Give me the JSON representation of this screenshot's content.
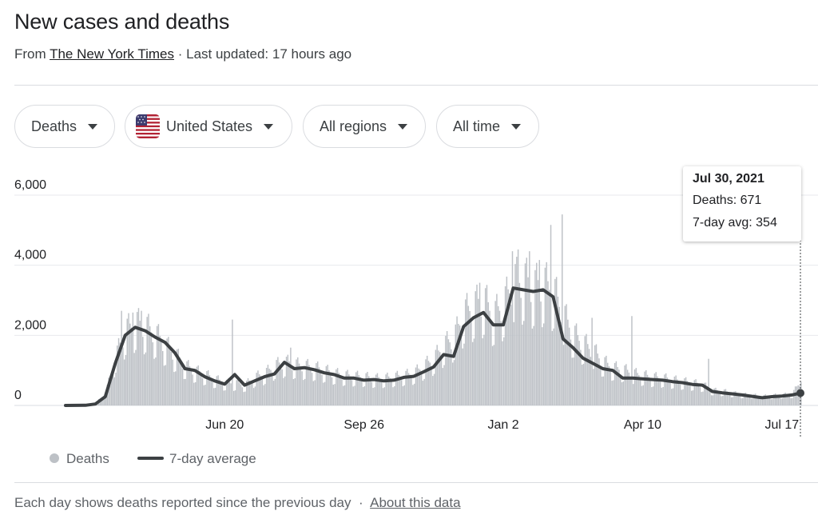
{
  "header": {
    "title": "New cases and deaths",
    "source_prefix": "From",
    "source_name": "The New York Times",
    "updated": "· Last updated: 17 hours ago"
  },
  "filters": {
    "metric": "Deaths",
    "country": "United States",
    "region": "All regions",
    "range": "All time"
  },
  "tooltip": {
    "date": "Jul 30, 2021",
    "deaths": "Deaths: 671",
    "avg": "7-day avg: 354"
  },
  "legend": {
    "bars": "Deaths",
    "line": "7-day average"
  },
  "footer": {
    "note": "Each day shows deaths reported since the previous day",
    "sep": "·",
    "link": "About this data"
  },
  "colors": {
    "bars": "#bdc1c6",
    "line": "#3c4043",
    "grid": "#e8eaed",
    "axis_text": "#202124"
  },
  "chart_data": {
    "type": "bar",
    "title": "",
    "xlabel": "",
    "ylabel": "",
    "ylim": [
      0,
      6000
    ],
    "yticks": [
      0,
      2000,
      4000,
      6000
    ],
    "ytick_labels": [
      "0",
      "2,000",
      "4,000",
      "6,000"
    ],
    "xticks": [
      "2020-06-20",
      "2020-09-26",
      "2021-01-02",
      "2021-04-10",
      "2021-07-17"
    ],
    "xtick_labels": [
      "Jun 20",
      "Sep 26",
      "Jan 2",
      "Apr 10",
      "Jul 17"
    ],
    "x_range": [
      "2020-02-29",
      "2021-07-30"
    ],
    "highlight": {
      "date": "2021-07-30",
      "deaths": 671,
      "avg": 354
    },
    "series": [
      {
        "name": "Deaths",
        "kind": "bar",
        "sampling": "daily",
        "points": [
          [
            "2020-02-29",
            1
          ],
          [
            "2020-03-14",
            10
          ],
          [
            "2020-03-21",
            60
          ],
          [
            "2020-03-28",
            350
          ],
          [
            "2020-04-04",
            1300
          ],
          [
            "2020-04-11",
            2000
          ],
          [
            "2020-04-18",
            2200
          ],
          [
            "2020-04-25",
            2100
          ],
          [
            "2020-05-02",
            1900
          ],
          [
            "2020-05-09",
            1600
          ],
          [
            "2020-05-16",
            1350
          ],
          [
            "2020-05-23",
            1050
          ],
          [
            "2020-05-30",
            920
          ],
          [
            "2020-06-06",
            820
          ],
          [
            "2020-06-13",
            700
          ],
          [
            "2020-06-20",
            600
          ],
          [
            "2020-06-27",
            600
          ],
          [
            "2020-07-04",
            550
          ],
          [
            "2020-07-11",
            750
          ],
          [
            "2020-07-18",
            850
          ],
          [
            "2020-07-25",
            1050
          ],
          [
            "2020-08-01",
            1150
          ],
          [
            "2020-08-08",
            1080
          ],
          [
            "2020-08-15",
            1050
          ],
          [
            "2020-08-22",
            1000
          ],
          [
            "2020-08-29",
            930
          ],
          [
            "2020-09-05",
            850
          ],
          [
            "2020-09-12",
            800
          ],
          [
            "2020-09-19",
            780
          ],
          [
            "2020-09-26",
            760
          ],
          [
            "2020-10-03",
            720
          ],
          [
            "2020-10-10",
            720
          ],
          [
            "2020-10-17",
            760
          ],
          [
            "2020-10-24",
            800
          ],
          [
            "2020-10-31",
            860
          ],
          [
            "2020-11-07",
            1050
          ],
          [
            "2020-11-14",
            1250
          ],
          [
            "2020-11-21",
            1600
          ],
          [
            "2020-11-28",
            1800
          ],
          [
            "2020-12-05",
            2450
          ],
          [
            "2020-12-12",
            2650
          ],
          [
            "2020-12-19",
            2800
          ],
          [
            "2020-12-26",
            2400
          ],
          [
            "2021-01-02",
            2700
          ],
          [
            "2021-01-09",
            3300
          ],
          [
            "2021-01-16",
            3350
          ],
          [
            "2021-01-23",
            3150
          ],
          [
            "2021-01-30",
            3250
          ],
          [
            "2021-02-06",
            3050
          ],
          [
            "2021-02-13",
            2400
          ],
          [
            "2021-02-20",
            1900
          ],
          [
            "2021-02-27",
            1650
          ],
          [
            "2021-03-06",
            1450
          ],
          [
            "2021-03-13",
            1150
          ],
          [
            "2021-03-20",
            1000
          ],
          [
            "2021-03-27",
            950
          ],
          [
            "2021-04-03",
            850
          ],
          [
            "2021-04-10",
            800
          ],
          [
            "2021-04-17",
            750
          ],
          [
            "2021-04-24",
            730
          ],
          [
            "2021-05-01",
            680
          ],
          [
            "2021-05-08",
            640
          ],
          [
            "2021-05-15",
            600
          ],
          [
            "2021-05-22",
            550
          ],
          [
            "2021-05-29",
            400
          ],
          [
            "2021-06-05",
            380
          ],
          [
            "2021-06-12",
            330
          ],
          [
            "2021-06-19",
            290
          ],
          [
            "2021-06-26",
            270
          ],
          [
            "2021-07-03",
            240
          ],
          [
            "2021-07-10",
            260
          ],
          [
            "2021-07-17",
            280
          ],
          [
            "2021-07-24",
            300
          ],
          [
            "2021-07-30",
            671
          ]
        ],
        "spikes": [
          [
            "2020-04-08",
            2700
          ],
          [
            "2020-04-16",
            2650
          ],
          [
            "2020-04-22",
            2700
          ],
          [
            "2020-06-25",
            2450
          ],
          [
            "2020-08-05",
            1650
          ],
          [
            "2020-12-16",
            3500
          ],
          [
            "2021-01-08",
            4400
          ],
          [
            "2021-01-12",
            4450
          ],
          [
            "2021-01-20",
            4400
          ],
          [
            "2021-01-27",
            4150
          ],
          [
            "2021-02-04",
            5150
          ],
          [
            "2021-02-12",
            5450
          ],
          [
            "2021-03-05",
            2500
          ],
          [
            "2021-04-02",
            2550
          ],
          [
            "2021-05-26",
            1330
          ]
        ]
      },
      {
        "name": "7-day average",
        "kind": "line",
        "points": [
          [
            "2020-02-29",
            0
          ],
          [
            "2020-03-14",
            5
          ],
          [
            "2020-03-21",
            40
          ],
          [
            "2020-03-28",
            250
          ],
          [
            "2020-04-04",
            1200
          ],
          [
            "2020-04-11",
            2000
          ],
          [
            "2020-04-18",
            2230
          ],
          [
            "2020-04-25",
            2130
          ],
          [
            "2020-05-02",
            1950
          ],
          [
            "2020-05-09",
            1800
          ],
          [
            "2020-05-16",
            1500
          ],
          [
            "2020-05-23",
            1050
          ],
          [
            "2020-05-30",
            1000
          ],
          [
            "2020-06-06",
            820
          ],
          [
            "2020-06-13",
            700
          ],
          [
            "2020-06-20",
            610
          ],
          [
            "2020-06-27",
            880
          ],
          [
            "2020-07-04",
            580
          ],
          [
            "2020-07-11",
            700
          ],
          [
            "2020-07-18",
            820
          ],
          [
            "2020-07-25",
            900
          ],
          [
            "2020-08-01",
            1230
          ],
          [
            "2020-08-08",
            1050
          ],
          [
            "2020-08-15",
            1080
          ],
          [
            "2020-08-22",
            1020
          ],
          [
            "2020-08-29",
            930
          ],
          [
            "2020-09-05",
            880
          ],
          [
            "2020-09-12",
            780
          ],
          [
            "2020-09-19",
            780
          ],
          [
            "2020-09-26",
            720
          ],
          [
            "2020-10-03",
            740
          ],
          [
            "2020-10-10",
            700
          ],
          [
            "2020-10-17",
            720
          ],
          [
            "2020-10-24",
            800
          ],
          [
            "2020-10-31",
            830
          ],
          [
            "2020-11-07",
            960
          ],
          [
            "2020-11-14",
            1100
          ],
          [
            "2020-11-21",
            1450
          ],
          [
            "2020-11-28",
            1400
          ],
          [
            "2020-12-05",
            2250
          ],
          [
            "2020-12-12",
            2500
          ],
          [
            "2020-12-19",
            2650
          ],
          [
            "2020-12-26",
            2300
          ],
          [
            "2021-01-02",
            2300
          ],
          [
            "2021-01-09",
            3350
          ],
          [
            "2021-01-16",
            3300
          ],
          [
            "2021-01-23",
            3250
          ],
          [
            "2021-01-30",
            3300
          ],
          [
            "2021-02-06",
            3100
          ],
          [
            "2021-02-13",
            1900
          ],
          [
            "2021-02-20",
            1650
          ],
          [
            "2021-02-27",
            1350
          ],
          [
            "2021-03-06",
            1200
          ],
          [
            "2021-03-13",
            1050
          ],
          [
            "2021-03-20",
            1000
          ],
          [
            "2021-03-27",
            780
          ],
          [
            "2021-04-03",
            780
          ],
          [
            "2021-04-10",
            760
          ],
          [
            "2021-04-17",
            740
          ],
          [
            "2021-04-24",
            720
          ],
          [
            "2021-05-01",
            680
          ],
          [
            "2021-05-08",
            650
          ],
          [
            "2021-05-15",
            600
          ],
          [
            "2021-05-22",
            580
          ],
          [
            "2021-05-29",
            400
          ],
          [
            "2021-06-05",
            360
          ],
          [
            "2021-06-12",
            330
          ],
          [
            "2021-06-19",
            300
          ],
          [
            "2021-06-26",
            260
          ],
          [
            "2021-07-03",
            220
          ],
          [
            "2021-07-10",
            250
          ],
          [
            "2021-07-17",
            270
          ],
          [
            "2021-07-24",
            300
          ],
          [
            "2021-07-30",
            354
          ]
        ]
      }
    ]
  }
}
